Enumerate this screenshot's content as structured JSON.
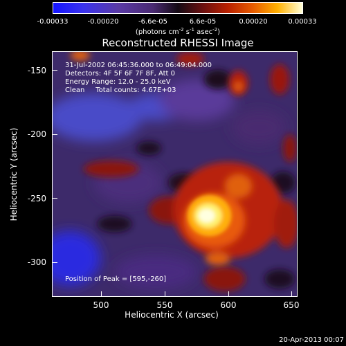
{
  "colorbar": {
    "tick_labels": [
      "-0.00033",
      "-0.00020",
      "-6.6e-05",
      "6.6e-05",
      "0.00020",
      "0.00033"
    ],
    "units_text": "(photons cm",
    "units_exp1": "-2",
    "units_mid": " s",
    "units_exp2": "-1",
    "units_mid2": " asec",
    "units_exp3": "-2",
    "units_end": ")"
  },
  "plot": {
    "title": "Reconstructed RHESSI Image",
    "info": {
      "time_range": "31-Jul-2002 06:45:36.000 to 06:49:04.000",
      "detectors": "Detectors: 4F 5F 6F 7F 8F, Att 0",
      "energy_range": "Energy Range: 12.0 - 25.0 keV",
      "algorithm": "Clean     Total counts: 4.67E+03"
    },
    "peak_text": "Position of Peak = [595,-260]",
    "x_axis": {
      "title": "Heliocentric X (arcsec)",
      "tick_labels": [
        "500",
        "550",
        "600",
        "650"
      ]
    },
    "y_axis": {
      "title": "Heliocentric Y (arcsec)",
      "tick_labels": [
        "-150",
        "-200",
        "-250",
        "-300"
      ]
    }
  },
  "footer": {
    "timestamp": "20-Apr-2013 00:07"
  }
}
